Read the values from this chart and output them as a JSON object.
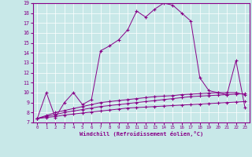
{
  "xlabel": "Windchill (Refroidissement éolien,°C)",
  "bg_color": "#c8e8e8",
  "line_color": "#880088",
  "xlim": [
    -0.5,
    23.5
  ],
  "ylim": [
    7,
    19
  ],
  "yticks": [
    7,
    8,
    9,
    10,
    11,
    12,
    13,
    14,
    15,
    16,
    17,
    18,
    19
  ],
  "xticks": [
    0,
    1,
    2,
    3,
    4,
    5,
    6,
    7,
    8,
    9,
    10,
    11,
    12,
    13,
    14,
    15,
    16,
    17,
    18,
    19,
    20,
    21,
    22,
    23
  ],
  "series1_x": [
    0,
    1,
    2,
    3,
    4,
    5,
    6,
    7,
    8,
    9,
    10,
    11,
    12,
    13,
    14,
    15,
    16,
    17,
    18,
    19,
    20,
    21,
    22,
    23
  ],
  "series1_y": [
    7.4,
    10.0,
    7.5,
    9.0,
    10.0,
    8.8,
    9.3,
    14.2,
    14.7,
    15.3,
    16.3,
    18.2,
    17.6,
    18.4,
    19.0,
    18.8,
    18.0,
    17.2,
    11.5,
    10.2,
    10.0,
    9.8,
    13.2,
    8.5
  ],
  "series2_x": [
    0,
    1,
    2,
    3,
    4,
    5,
    6,
    7,
    8,
    9,
    10,
    11,
    12,
    13,
    14,
    15,
    16,
    17,
    18,
    19,
    20,
    21,
    22,
    23
  ],
  "series2_y": [
    7.4,
    7.5,
    7.6,
    7.75,
    7.85,
    7.95,
    8.05,
    8.15,
    8.25,
    8.35,
    8.45,
    8.5,
    8.55,
    8.6,
    8.65,
    8.7,
    8.75,
    8.8,
    8.85,
    8.9,
    8.95,
    9.0,
    9.05,
    9.1
  ],
  "series3_x": [
    0,
    1,
    2,
    3,
    4,
    5,
    6,
    7,
    8,
    9,
    10,
    11,
    12,
    13,
    14,
    15,
    16,
    17,
    18,
    19,
    20,
    21,
    22,
    23
  ],
  "series3_y": [
    7.4,
    7.6,
    7.8,
    8.0,
    8.15,
    8.3,
    8.45,
    8.6,
    8.7,
    8.8,
    8.9,
    9.0,
    9.1,
    9.2,
    9.3,
    9.4,
    9.5,
    9.6,
    9.65,
    9.7,
    9.75,
    9.8,
    9.85,
    9.9
  ],
  "series4_x": [
    0,
    1,
    2,
    3,
    4,
    5,
    6,
    7,
    8,
    9,
    10,
    11,
    12,
    13,
    14,
    15,
    16,
    17,
    18,
    19,
    20,
    21,
    22,
    23
  ],
  "series4_y": [
    7.4,
    7.7,
    8.0,
    8.2,
    8.4,
    8.6,
    8.8,
    9.0,
    9.1,
    9.2,
    9.3,
    9.4,
    9.5,
    9.6,
    9.65,
    9.7,
    9.8,
    9.85,
    9.9,
    9.95,
    10.0,
    10.0,
    10.0,
    9.8
  ]
}
